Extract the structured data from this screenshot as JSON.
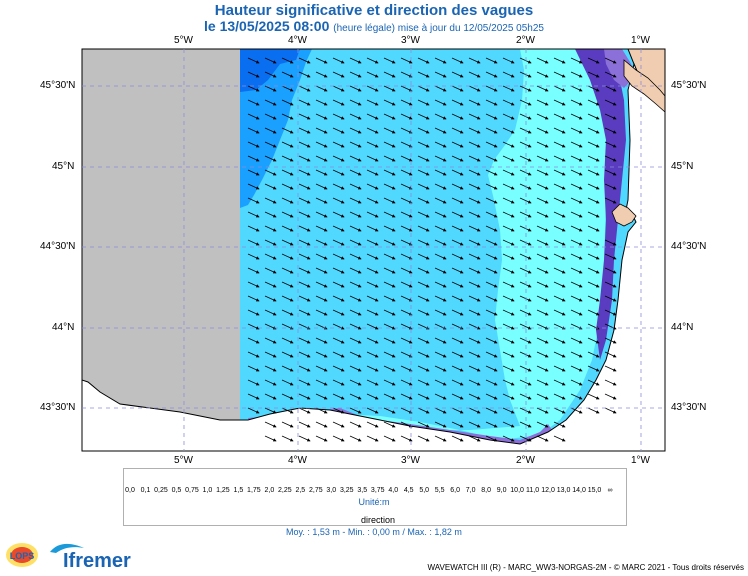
{
  "title_line1": "Hauteur significative et direction des vagues",
  "title_date": "le 13/05/2025 08:00",
  "title_update": "(heure légale) mise à jour du 12/05/2025 05h25",
  "lon_labels": [
    "5°W",
    "4°W",
    "3°W",
    "2°W",
    "1°W"
  ],
  "lat_labels": [
    "45°30'N",
    "45°N",
    "44°30'N",
    "44°N",
    "43°30'N"
  ],
  "colorbar": {
    "labels": [
      "0,0",
      "0,1",
      "0,25",
      "0,5",
      "0,75",
      "1,0",
      "1,25",
      "1,5",
      "1,75",
      "2,0",
      "2,25",
      "2,5",
      "2,75",
      "3,0",
      "3,25",
      "3,5",
      "3,75",
      "4,0",
      "4,5",
      "5,0",
      "5,5",
      "6,0",
      "7,0",
      "8,0",
      "9,0",
      "10,0",
      "11,0",
      "12,0",
      "13,0",
      "14,0",
      "15,0",
      "∞"
    ],
    "colors": [
      "#e8d8cc",
      "#d8c8bc",
      "#c8b8ac",
      "#b4a0e6",
      "#8a70d8",
      "#5a3cc0",
      "#78ffff",
      "#50d8ff",
      "#1aa0ff",
      "#0a6ef0",
      "#0a32c8",
      "#001e96",
      "#d2ffa0",
      "#a0ff78",
      "#50f050",
      "#28d228",
      "#00b400",
      "#00d2a0",
      "#ffff00",
      "#ffd700",
      "#ffaa00",
      "#ff7800",
      "#ffb4b4",
      "#ff6464",
      "#dc1e1e",
      "#a01414",
      "#aa6428",
      "#784614",
      "#8c0000",
      "#640028",
      "#a0005a"
    ],
    "unit": "Unité:m"
  },
  "direction_label": "direction",
  "stats": "Moy. : 1,53 m   -   Min. : 0,00 m / Max. : 1,82 m",
  "credit": "WAVEWATCH III (R) - MARC_WW3-NORGAS-2M - © MARC 2021 - Tous droits réservés",
  "logo_lops": "LOPS",
  "logo_ifremer": "Ifremer",
  "map_colors": {
    "nodata": "#c0c0c0",
    "land": "#f0cdb0",
    "wave_0_5": "#b4a0e6",
    "wave_0_75": "#8a70d8",
    "wave_1_0": "#5a3cc0",
    "wave_1_25": "#78ffff",
    "wave_1_5": "#50d8ff",
    "wave_1_75": "#1aa0ff",
    "wave_2_0": "#0a6ef0"
  },
  "map_meta": {
    "lon_range": [
      -5.9,
      -0.8
    ],
    "lat_range": [
      43.2,
      45.7
    ],
    "arrow_direction": "towards south-east"
  }
}
